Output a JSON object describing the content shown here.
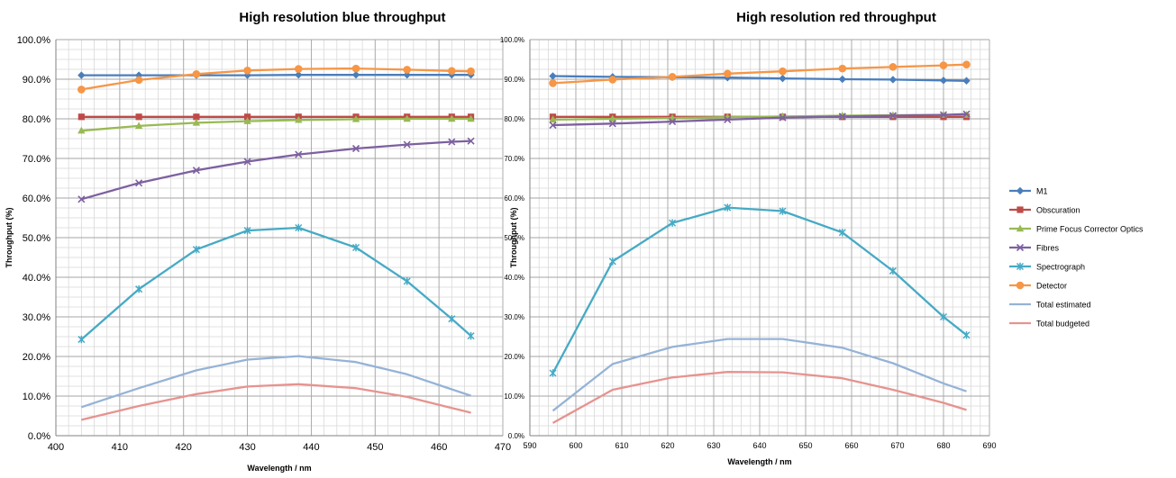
{
  "series_styles": [
    {
      "name": "M1",
      "color": "#4a7ebb",
      "marker": "diamond"
    },
    {
      "name": "Obscuration",
      "color": "#be4b48",
      "marker": "square"
    },
    {
      "name": "Prime Focus Corrector Optics",
      "color": "#98b954",
      "marker": "triangle"
    },
    {
      "name": "Fibres",
      "color": "#7d60a0",
      "marker": "x"
    },
    {
      "name": "Spectrograph",
      "color": "#46aac5",
      "marker": "star"
    },
    {
      "name": "Detector",
      "color": "#f69646",
      "marker": "circle"
    },
    {
      "name": "Total estimated",
      "color": "#95b3d7",
      "marker": "none"
    },
    {
      "name": "Total budgeted",
      "color": "#e6938f",
      "marker": "none"
    }
  ],
  "chart_data": [
    {
      "type": "line",
      "title": "High resolution blue throughput",
      "xlabel": "Wavelength / nm",
      "ylabel": "Throughput (%)",
      "xlim": [
        400,
        470
      ],
      "ylim": [
        0,
        100
      ],
      "xticks": [
        400,
        410,
        420,
        430,
        440,
        450,
        460,
        470
      ],
      "xtick_labels": [
        "400",
        "410",
        "420",
        "430",
        "440",
        "450",
        "460",
        "470"
      ],
      "yticks": [
        0,
        10,
        20,
        30,
        40,
        50,
        60,
        70,
        80,
        90,
        100
      ],
      "ytick_labels": [
        "0.0%",
        "10.0%",
        "20.0%",
        "30.0%",
        "40.0%",
        "50.0%",
        "60.0%",
        "70.0%",
        "80.0%",
        "90.0%",
        "100.0%"
      ],
      "grid": true,
      "x": [
        404,
        413,
        422,
        430,
        438,
        447,
        455,
        462,
        465
      ],
      "series": [
        {
          "name": "M1",
          "values": [
            91.0,
            91.0,
            91.0,
            91.0,
            91.1,
            91.1,
            91.1,
            91.1,
            91.1
          ]
        },
        {
          "name": "Obscuration",
          "values": [
            80.5,
            80.5,
            80.5,
            80.5,
            80.5,
            80.5,
            80.5,
            80.5,
            80.5
          ]
        },
        {
          "name": "Prime Focus Corrector Optics",
          "values": [
            77.0,
            78.2,
            79.0,
            79.4,
            79.7,
            79.9,
            80.0,
            80.0,
            80.0
          ]
        },
        {
          "name": "Fibres",
          "values": [
            59.7,
            63.8,
            67.0,
            69.2,
            71.0,
            72.5,
            73.5,
            74.2,
            74.4
          ]
        },
        {
          "name": "Spectrograph",
          "values": [
            24.3,
            37.0,
            47.0,
            51.8,
            52.5,
            47.5,
            39.0,
            29.5,
            25.2
          ]
        },
        {
          "name": "Detector",
          "values": [
            87.4,
            89.8,
            91.3,
            92.2,
            92.6,
            92.7,
            92.4,
            92.1,
            92.0
          ]
        },
        {
          "name": "Total estimated",
          "values": [
            7.2,
            12.0,
            16.5,
            19.2,
            20.1,
            18.6,
            15.5,
            11.7,
            10.1
          ]
        },
        {
          "name": "Total budgeted",
          "values": [
            4.0,
            7.5,
            10.5,
            12.4,
            13.0,
            12.0,
            9.8,
            7.0,
            5.8
          ]
        }
      ]
    },
    {
      "type": "line",
      "title": "High resolution red throughput",
      "xlabel": "Wavelength / nm",
      "ylabel": "Throughput (%)",
      "xlim": [
        590,
        690
      ],
      "ylim": [
        0,
        100
      ],
      "xticks": [
        590,
        600,
        610,
        620,
        630,
        640,
        650,
        660,
        670,
        680,
        690
      ],
      "xtick_labels": [
        "590",
        "600",
        "610",
        "620",
        "630",
        "640",
        "650",
        "660",
        "670",
        "680",
        "690"
      ],
      "yticks": [
        0,
        10,
        20,
        30,
        40,
        50,
        60,
        70,
        80,
        90,
        100
      ],
      "ytick_labels": [
        "0.0%",
        "10.0%",
        "20.0%",
        "30.0%",
        "40.0%",
        "50.0%",
        "60.0%",
        "70.0%",
        "80.0%",
        "90.0%",
        "100.0%"
      ],
      "grid": true,
      "legend": "right",
      "x": [
        595,
        608,
        621,
        633,
        645,
        658,
        669,
        680,
        685
      ],
      "series": [
        {
          "name": "M1",
          "values": [
            90.8,
            90.6,
            90.5,
            90.4,
            90.2,
            90.0,
            89.9,
            89.7,
            89.6
          ]
        },
        {
          "name": "Obscuration",
          "values": [
            80.5,
            80.5,
            80.5,
            80.5,
            80.5,
            80.5,
            80.5,
            80.5,
            80.5
          ]
        },
        {
          "name": "Prime Focus Corrector Optics",
          "values": [
            79.8,
            80.0,
            80.2,
            80.4,
            80.6,
            80.8,
            80.9,
            81.0,
            81.0
          ]
        },
        {
          "name": "Fibres",
          "values": [
            78.4,
            78.8,
            79.3,
            79.8,
            80.3,
            80.6,
            80.8,
            81.0,
            81.2
          ]
        },
        {
          "name": "Spectrograph",
          "values": [
            15.8,
            44.0,
            53.7,
            57.6,
            56.7,
            51.3,
            41.6,
            30.0,
            25.4
          ]
        },
        {
          "name": "Detector",
          "values": [
            89.0,
            89.9,
            90.6,
            91.4,
            92.0,
            92.7,
            93.1,
            93.5,
            93.7
          ]
        },
        {
          "name": "Total estimated",
          "values": [
            6.3,
            18.1,
            22.4,
            24.4,
            24.4,
            22.2,
            18.3,
            13.2,
            11.2
          ]
        },
        {
          "name": "Total budgeted",
          "values": [
            3.2,
            11.6,
            14.7,
            16.1,
            16.0,
            14.5,
            11.6,
            8.3,
            6.5
          ]
        }
      ]
    }
  ]
}
